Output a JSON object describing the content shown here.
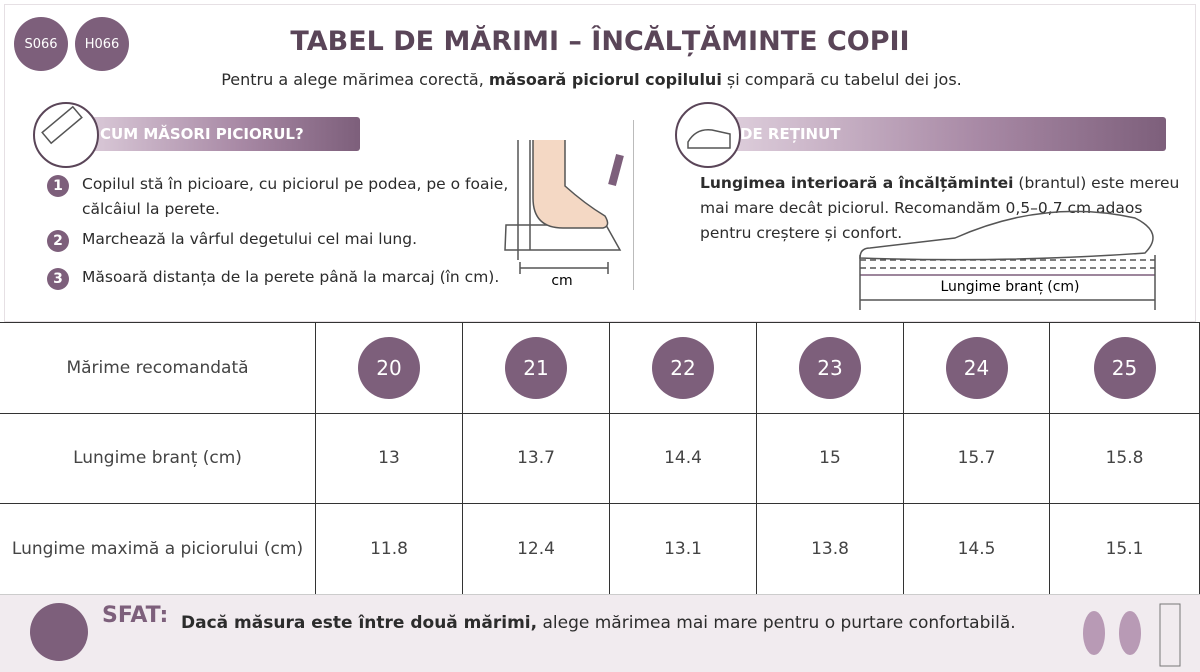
{
  "badges": [
    "S066",
    "H066"
  ],
  "title": "TABEL DE MĂRIMI – ÎNCĂLȚĂMINTE COPII",
  "subtitle": {
    "before": "Pentru a alege mărimea corectă, ",
    "bold": "măsoară piciorul copilului",
    "after": " și compară cu tabelul dei jos."
  },
  "measure": {
    "heading": "CUM MĂSORI PICIORUL?",
    "steps": [
      {
        "number": 1,
        "text": "Copilul stă în picioare, cu piciorul pe podea, pe o foaie, călcâiul la perete."
      },
      {
        "number": 2,
        "text": "Marchează la vârful degetului cel mai lung."
      },
      {
        "number": 3,
        "text": "Măsoară distanța de la perete până la marcaj (în cm)."
      }
    ],
    "diagram_label": "cm"
  },
  "remember": {
    "heading": "DE REȚINUT",
    "text_bold": "Lungimea interioară a încălțămintei",
    "text": " (brantul) este mereu mai mare decât piciorul. Recomandăm 0,5–0,7 cm adaos pentru creștere și confort.",
    "diagram_label": "Lungime branț (cm)"
  },
  "table": {
    "rows": [
      {
        "label": "Mărime recomandată",
        "values": [
          20,
          21,
          22,
          23,
          24,
          25
        ]
      },
      {
        "label": "Lungime branț (cm)",
        "values": [
          13,
          13.7,
          14.4,
          15,
          15.7,
          15.8
        ]
      },
      {
        "label": "Lungime maximă a piciorului (cm)",
        "values": [
          11.8,
          12.4,
          13.1,
          13.8,
          14.5,
          15.1
        ]
      }
    ]
  },
  "tip": {
    "label": "SFAT:",
    "bold": "Dacă măsura este între două mărimi,",
    "text": " alege mărimea mai mare pentru o purtare confortabilă."
  }
}
